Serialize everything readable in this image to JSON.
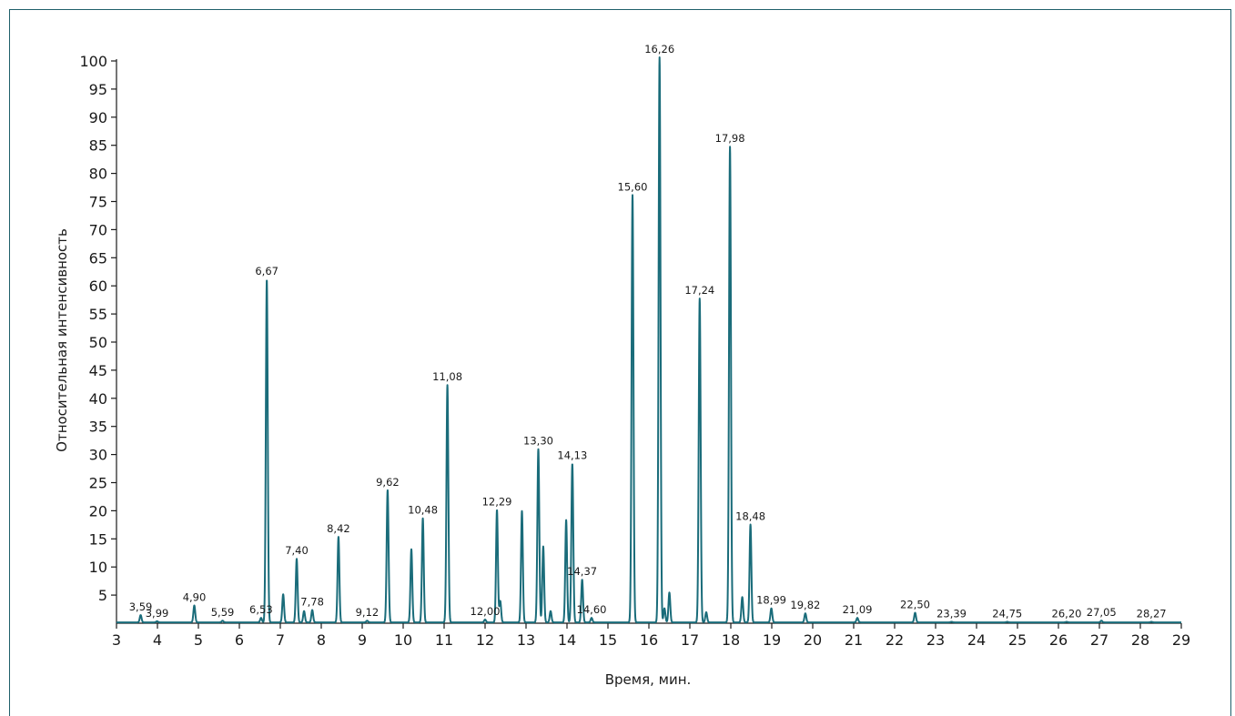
{
  "chart_data": {
    "type": "line",
    "xlabel": "Время, мин.",
    "ylabel": "Относительная интенсивность",
    "xlim": [
      3,
      29
    ],
    "ylim": [
      0,
      100
    ],
    "x_ticks": [
      3,
      4,
      5,
      6,
      7,
      8,
      9,
      10,
      11,
      12,
      13,
      14,
      15,
      16,
      17,
      18,
      19,
      20,
      21,
      22,
      23,
      24,
      25,
      26,
      27,
      28,
      29
    ],
    "y_ticks": [
      5,
      10,
      15,
      20,
      25,
      30,
      35,
      40,
      45,
      50,
      55,
      60,
      65,
      70,
      75,
      80,
      85,
      90,
      95,
      100
    ],
    "line_color": "#1a6c7a",
    "peaks": [
      {
        "x": 3.59,
        "y": 1.3,
        "label": "3,59"
      },
      {
        "x": 3.99,
        "y": 0.2,
        "label": "3,99"
      },
      {
        "x": 4.9,
        "y": 3.0,
        "label": "4,90"
      },
      {
        "x": 5.59,
        "y": 0.3,
        "label": "5,59"
      },
      {
        "x": 6.53,
        "y": 0.8,
        "label": "6,53"
      },
      {
        "x": 6.67,
        "y": 61,
        "label": "6,67"
      },
      {
        "x": 7.07,
        "y": 5.0,
        "label": ""
      },
      {
        "x": 7.4,
        "y": 11.3,
        "label": "7,40"
      },
      {
        "x": 7.58,
        "y": 2.0,
        "label": ""
      },
      {
        "x": 7.78,
        "y": 2.2,
        "label": "7,78"
      },
      {
        "x": 8.42,
        "y": 15.2,
        "label": "8,42"
      },
      {
        "x": 9.12,
        "y": 0.3,
        "label": "9,12"
      },
      {
        "x": 9.62,
        "y": 23.5,
        "label": "9,62"
      },
      {
        "x": 10.2,
        "y": 13.0,
        "label": ""
      },
      {
        "x": 10.48,
        "y": 18.5,
        "label": "10,48"
      },
      {
        "x": 11.08,
        "y": 42.2,
        "label": "11,08"
      },
      {
        "x": 12.0,
        "y": 0.5,
        "label": "12,00"
      },
      {
        "x": 12.29,
        "y": 20.0,
        "label": "12,29"
      },
      {
        "x": 12.37,
        "y": 3.8,
        "label": ""
      },
      {
        "x": 12.9,
        "y": 19.8,
        "label": ""
      },
      {
        "x": 13.3,
        "y": 30.8,
        "label": "13,30"
      },
      {
        "x": 13.42,
        "y": 13.5,
        "label": ""
      },
      {
        "x": 13.6,
        "y": 2.0,
        "label": ""
      },
      {
        "x": 13.98,
        "y": 18.2,
        "label": ""
      },
      {
        "x": 14.13,
        "y": 28.2,
        "label": "14,13"
      },
      {
        "x": 14.37,
        "y": 7.6,
        "label": "14,37"
      },
      {
        "x": 14.6,
        "y": 0.8,
        "label": "14,60"
      },
      {
        "x": 15.6,
        "y": 76.0,
        "label": "15,60"
      },
      {
        "x": 16.26,
        "y": 100.5,
        "label": "16,26"
      },
      {
        "x": 16.38,
        "y": 2.5,
        "label": ""
      },
      {
        "x": 16.5,
        "y": 5.3,
        "label": ""
      },
      {
        "x": 17.24,
        "y": 57.6,
        "label": "17,24"
      },
      {
        "x": 17.4,
        "y": 1.8,
        "label": ""
      },
      {
        "x": 17.98,
        "y": 84.6,
        "label": "17,98"
      },
      {
        "x": 18.28,
        "y": 4.5,
        "label": ""
      },
      {
        "x": 18.48,
        "y": 17.4,
        "label": "18,48"
      },
      {
        "x": 18.99,
        "y": 2.5,
        "label": "18,99"
      },
      {
        "x": 19.82,
        "y": 1.6,
        "label": "19,82"
      },
      {
        "x": 21.09,
        "y": 0.8,
        "label": "21,09"
      },
      {
        "x": 22.5,
        "y": 1.7,
        "label": "22,50"
      },
      {
        "x": 23.39,
        "y": 0.1,
        "label": "23,39"
      },
      {
        "x": 24.75,
        "y": 0.1,
        "label": "24,75"
      },
      {
        "x": 26.2,
        "y": 0.1,
        "label": "26,20"
      },
      {
        "x": 27.05,
        "y": 0.3,
        "label": "27,05"
      },
      {
        "x": 28.27,
        "y": 0.1,
        "label": "28,27"
      }
    ]
  }
}
